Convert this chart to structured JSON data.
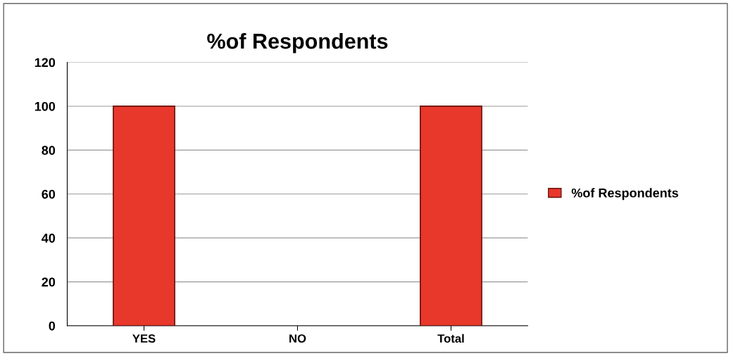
{
  "chart_data": {
    "type": "bar",
    "title": "%of Respondents",
    "categories": [
      "YES",
      "NO",
      "Total"
    ],
    "series": [
      {
        "name": "%of Respondents",
        "color": "#e8372b",
        "values": [
          100,
          0,
          100
        ]
      }
    ],
    "ylim": [
      0,
      120
    ],
    "yticks": [
      0,
      20,
      40,
      60,
      80,
      100,
      120
    ],
    "grid": "y",
    "legend": "right"
  }
}
